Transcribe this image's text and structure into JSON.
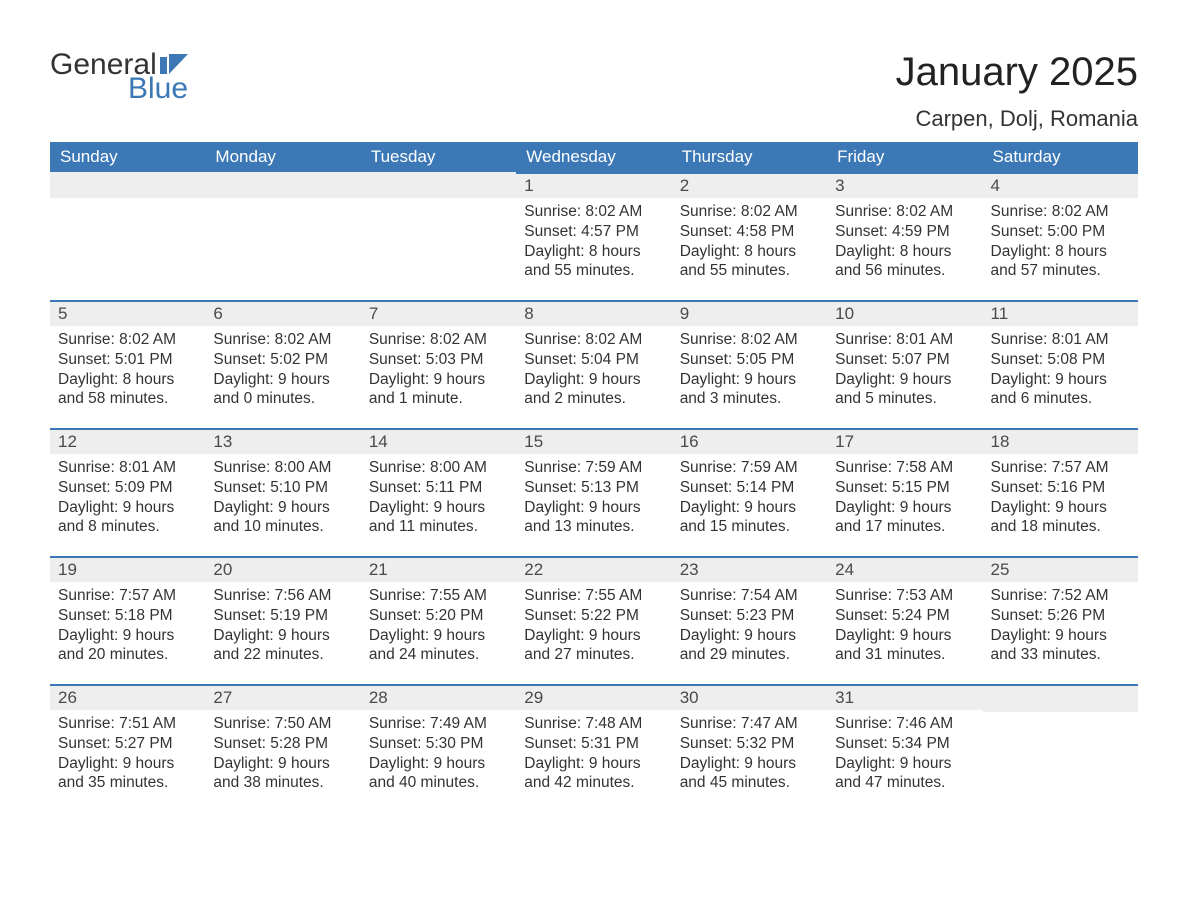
{
  "logo": {
    "word1": "General",
    "word2": "Blue",
    "flag_color": "#3b78b5"
  },
  "title": "January 2025",
  "location": "Carpen, Dolj, Romania",
  "colors": {
    "header_bg": "#3b78b5",
    "header_text": "#ffffff",
    "daynum_bg": "#eeeeee",
    "row_border": "#3b78b5",
    "body_text": "#333333",
    "page_bg": "#ffffff"
  },
  "typography": {
    "title_fontsize_pt": 30,
    "location_fontsize_pt": 16,
    "header_fontsize_pt": 13,
    "body_fontsize_pt": 12
  },
  "weekdays": [
    "Sunday",
    "Monday",
    "Tuesday",
    "Wednesday",
    "Thursday",
    "Friday",
    "Saturday"
  ],
  "rows": [
    [
      {
        "blank": true
      },
      {
        "blank": true
      },
      {
        "blank": true
      },
      {
        "day": "1",
        "sunrise": "Sunrise: 8:02 AM",
        "sunset": "Sunset: 4:57 PM",
        "daylight": "Daylight: 8 hours and 55 minutes."
      },
      {
        "day": "2",
        "sunrise": "Sunrise: 8:02 AM",
        "sunset": "Sunset: 4:58 PM",
        "daylight": "Daylight: 8 hours and 55 minutes."
      },
      {
        "day": "3",
        "sunrise": "Sunrise: 8:02 AM",
        "sunset": "Sunset: 4:59 PM",
        "daylight": "Daylight: 8 hours and 56 minutes."
      },
      {
        "day": "4",
        "sunrise": "Sunrise: 8:02 AM",
        "sunset": "Sunset: 5:00 PM",
        "daylight": "Daylight: 8 hours and 57 minutes."
      }
    ],
    [
      {
        "day": "5",
        "sunrise": "Sunrise: 8:02 AM",
        "sunset": "Sunset: 5:01 PM",
        "daylight": "Daylight: 8 hours and 58 minutes."
      },
      {
        "day": "6",
        "sunrise": "Sunrise: 8:02 AM",
        "sunset": "Sunset: 5:02 PM",
        "daylight": "Daylight: 9 hours and 0 minutes."
      },
      {
        "day": "7",
        "sunrise": "Sunrise: 8:02 AM",
        "sunset": "Sunset: 5:03 PM",
        "daylight": "Daylight: 9 hours and 1 minute."
      },
      {
        "day": "8",
        "sunrise": "Sunrise: 8:02 AM",
        "sunset": "Sunset: 5:04 PM",
        "daylight": "Daylight: 9 hours and 2 minutes."
      },
      {
        "day": "9",
        "sunrise": "Sunrise: 8:02 AM",
        "sunset": "Sunset: 5:05 PM",
        "daylight": "Daylight: 9 hours and 3 minutes."
      },
      {
        "day": "10",
        "sunrise": "Sunrise: 8:01 AM",
        "sunset": "Sunset: 5:07 PM",
        "daylight": "Daylight: 9 hours and 5 minutes."
      },
      {
        "day": "11",
        "sunrise": "Sunrise: 8:01 AM",
        "sunset": "Sunset: 5:08 PM",
        "daylight": "Daylight: 9 hours and 6 minutes."
      }
    ],
    [
      {
        "day": "12",
        "sunrise": "Sunrise: 8:01 AM",
        "sunset": "Sunset: 5:09 PM",
        "daylight": "Daylight: 9 hours and 8 minutes."
      },
      {
        "day": "13",
        "sunrise": "Sunrise: 8:00 AM",
        "sunset": "Sunset: 5:10 PM",
        "daylight": "Daylight: 9 hours and 10 minutes."
      },
      {
        "day": "14",
        "sunrise": "Sunrise: 8:00 AM",
        "sunset": "Sunset: 5:11 PM",
        "daylight": "Daylight: 9 hours and 11 minutes."
      },
      {
        "day": "15",
        "sunrise": "Sunrise: 7:59 AM",
        "sunset": "Sunset: 5:13 PM",
        "daylight": "Daylight: 9 hours and 13 minutes."
      },
      {
        "day": "16",
        "sunrise": "Sunrise: 7:59 AM",
        "sunset": "Sunset: 5:14 PM",
        "daylight": "Daylight: 9 hours and 15 minutes."
      },
      {
        "day": "17",
        "sunrise": "Sunrise: 7:58 AM",
        "sunset": "Sunset: 5:15 PM",
        "daylight": "Daylight: 9 hours and 17 minutes."
      },
      {
        "day": "18",
        "sunrise": "Sunrise: 7:57 AM",
        "sunset": "Sunset: 5:16 PM",
        "daylight": "Daylight: 9 hours and 18 minutes."
      }
    ],
    [
      {
        "day": "19",
        "sunrise": "Sunrise: 7:57 AM",
        "sunset": "Sunset: 5:18 PM",
        "daylight": "Daylight: 9 hours and 20 minutes."
      },
      {
        "day": "20",
        "sunrise": "Sunrise: 7:56 AM",
        "sunset": "Sunset: 5:19 PM",
        "daylight": "Daylight: 9 hours and 22 minutes."
      },
      {
        "day": "21",
        "sunrise": "Sunrise: 7:55 AM",
        "sunset": "Sunset: 5:20 PM",
        "daylight": "Daylight: 9 hours and 24 minutes."
      },
      {
        "day": "22",
        "sunrise": "Sunrise: 7:55 AM",
        "sunset": "Sunset: 5:22 PM",
        "daylight": "Daylight: 9 hours and 27 minutes."
      },
      {
        "day": "23",
        "sunrise": "Sunrise: 7:54 AM",
        "sunset": "Sunset: 5:23 PM",
        "daylight": "Daylight: 9 hours and 29 minutes."
      },
      {
        "day": "24",
        "sunrise": "Sunrise: 7:53 AM",
        "sunset": "Sunset: 5:24 PM",
        "daylight": "Daylight: 9 hours and 31 minutes."
      },
      {
        "day": "25",
        "sunrise": "Sunrise: 7:52 AM",
        "sunset": "Sunset: 5:26 PM",
        "daylight": "Daylight: 9 hours and 33 minutes."
      }
    ],
    [
      {
        "day": "26",
        "sunrise": "Sunrise: 7:51 AM",
        "sunset": "Sunset: 5:27 PM",
        "daylight": "Daylight: 9 hours and 35 minutes."
      },
      {
        "day": "27",
        "sunrise": "Sunrise: 7:50 AM",
        "sunset": "Sunset: 5:28 PM",
        "daylight": "Daylight: 9 hours and 38 minutes."
      },
      {
        "day": "28",
        "sunrise": "Sunrise: 7:49 AM",
        "sunset": "Sunset: 5:30 PM",
        "daylight": "Daylight: 9 hours and 40 minutes."
      },
      {
        "day": "29",
        "sunrise": "Sunrise: 7:48 AM",
        "sunset": "Sunset: 5:31 PM",
        "daylight": "Daylight: 9 hours and 42 minutes."
      },
      {
        "day": "30",
        "sunrise": "Sunrise: 7:47 AM",
        "sunset": "Sunset: 5:32 PM",
        "daylight": "Daylight: 9 hours and 45 minutes."
      },
      {
        "day": "31",
        "sunrise": "Sunrise: 7:46 AM",
        "sunset": "Sunset: 5:34 PM",
        "daylight": "Daylight: 9 hours and 47 minutes."
      },
      {
        "blank": true,
        "trailing": true
      }
    ]
  ]
}
